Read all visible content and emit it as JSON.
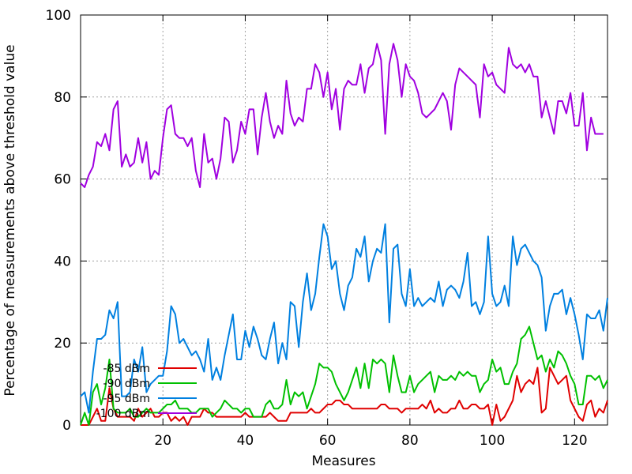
{
  "chart_data": {
    "type": "line",
    "title": "",
    "xlabel": "Measures",
    "ylabel": "Percentage of measurements above threshold value",
    "xlim": [
      0,
      128
    ],
    "ylim": [
      0,
      100
    ],
    "xticks": [
      20,
      40,
      60,
      80,
      100,
      120
    ],
    "yticks": [
      0,
      20,
      40,
      60,
      80,
      100
    ],
    "grid": true,
    "legend_position": "bottom-left",
    "series": [
      {
        "name": "-85 dBm",
        "color": "#e00000",
        "values": [
          0,
          0,
          0,
          2,
          4,
          1,
          1,
          9,
          4,
          2,
          2,
          2,
          2,
          1,
          4,
          2,
          3,
          4,
          2,
          2,
          3,
          3,
          1,
          2,
          1,
          2,
          0,
          2,
          2,
          2,
          4,
          3,
          3,
          2,
          2,
          2,
          2,
          2,
          2,
          2,
          3,
          2,
          2,
          2,
          2,
          2,
          3,
          2,
          1,
          1,
          1,
          3,
          3,
          3,
          3,
          3,
          4,
          3,
          3,
          4,
          5,
          5,
          6,
          6,
          5,
          5,
          4,
          4,
          4,
          4,
          4,
          4,
          4,
          5,
          5,
          4,
          4,
          4,
          3,
          4,
          4,
          4,
          4,
          5,
          4,
          6,
          3,
          4,
          3,
          3,
          4,
          4,
          6,
          4,
          4,
          5,
          5,
          4,
          4,
          5,
          0,
          5,
          1,
          2,
          4,
          6,
          12,
          8,
          10,
          11,
          10,
          14,
          3,
          4,
          14,
          12,
          10,
          11,
          12,
          6,
          4,
          2,
          1,
          5,
          6,
          2,
          4,
          3,
          6
        ]
      },
      {
        "name": "-90 dBm",
        "color": "#00c000",
        "values": [
          0,
          3,
          0,
          8,
          10,
          5,
          9,
          16,
          4,
          3,
          3,
          3,
          4,
          2,
          2,
          3,
          4,
          3,
          3,
          3,
          4,
          5,
          5,
          6,
          4,
          4,
          4,
          3,
          3,
          4,
          4,
          4,
          2,
          3,
          4,
          6,
          5,
          4,
          4,
          3,
          4,
          4,
          2,
          2,
          2,
          5,
          6,
          4,
          4,
          5,
          11,
          5,
          8,
          7,
          8,
          4,
          7,
          10,
          15,
          14,
          14,
          13,
          10,
          8,
          6,
          8,
          11,
          14,
          9,
          15,
          9,
          16,
          15,
          16,
          15,
          8,
          17,
          12,
          8,
          8,
          12,
          8,
          10,
          11,
          12,
          13,
          8,
          12,
          11,
          11,
          12,
          11,
          13,
          12,
          13,
          12,
          12,
          8,
          10,
          11,
          16,
          13,
          14,
          10,
          10,
          13,
          15,
          21,
          22,
          24,
          20,
          16,
          17,
          13,
          16,
          14,
          18,
          17,
          15,
          12,
          10,
          5,
          5,
          12,
          12,
          11,
          12,
          9,
          11
        ]
      },
      {
        "name": "-95 dBm",
        "color": "#0080e0",
        "values": [
          7,
          8,
          3,
          13,
          21,
          21,
          22,
          28,
          26,
          30,
          7,
          7,
          8,
          16,
          13,
          19,
          8,
          10,
          11,
          12,
          12,
          18,
          29,
          27,
          20,
          21,
          19,
          17,
          18,
          16,
          13,
          21,
          11,
          14,
          11,
          17,
          22,
          27,
          16,
          16,
          23,
          19,
          24,
          21,
          17,
          16,
          21,
          25,
          15,
          20,
          16,
          30,
          29,
          19,
          30,
          37,
          28,
          32,
          41,
          49,
          46,
          38,
          40,
          32,
          28,
          34,
          36,
          43,
          41,
          46,
          35,
          40,
          43,
          42,
          49,
          25,
          43,
          44,
          32,
          29,
          38,
          29,
          31,
          29,
          30,
          31,
          30,
          35,
          29,
          33,
          34,
          33,
          31,
          35,
          42,
          29,
          30,
          27,
          30,
          46,
          32,
          29,
          30,
          34,
          29,
          46,
          39,
          43,
          44,
          42,
          40,
          39,
          36,
          23,
          29,
          32,
          32,
          33,
          27,
          31,
          27,
          22,
          16,
          27,
          26,
          26,
          28,
          23,
          31
        ]
      },
      {
        "name": "-100 dBm",
        "color": "#a000e0",
        "values": [
          59,
          58,
          61,
          63,
          69,
          68,
          71,
          67,
          77,
          79,
          63,
          66,
          63,
          64,
          70,
          64,
          69,
          60,
          62,
          61,
          70,
          77,
          78,
          71,
          70,
          70,
          68,
          70,
          62,
          58,
          71,
          64,
          65,
          60,
          65,
          75,
          74,
          64,
          67,
          74,
          71,
          77,
          77,
          66,
          75,
          81,
          74,
          70,
          73,
          71,
          84,
          76,
          73,
          75,
          74,
          82,
          82,
          88,
          86,
          80,
          86,
          77,
          82,
          72,
          82,
          84,
          83,
          83,
          88,
          81,
          87,
          88,
          93,
          89,
          71,
          88,
          93,
          89,
          80,
          88,
          85,
          84,
          81,
          76,
          75,
          76,
          77,
          79,
          81,
          79,
          72,
          83,
          87,
          86,
          85,
          84,
          83,
          75,
          88,
          85,
          86,
          83,
          82,
          81,
          92,
          88,
          87,
          88,
          86,
          88,
          85,
          85,
          75,
          79,
          75,
          71,
          79,
          79,
          76,
          81,
          73,
          73,
          81,
          67,
          75,
          71,
          71,
          71
        ]
      }
    ]
  }
}
